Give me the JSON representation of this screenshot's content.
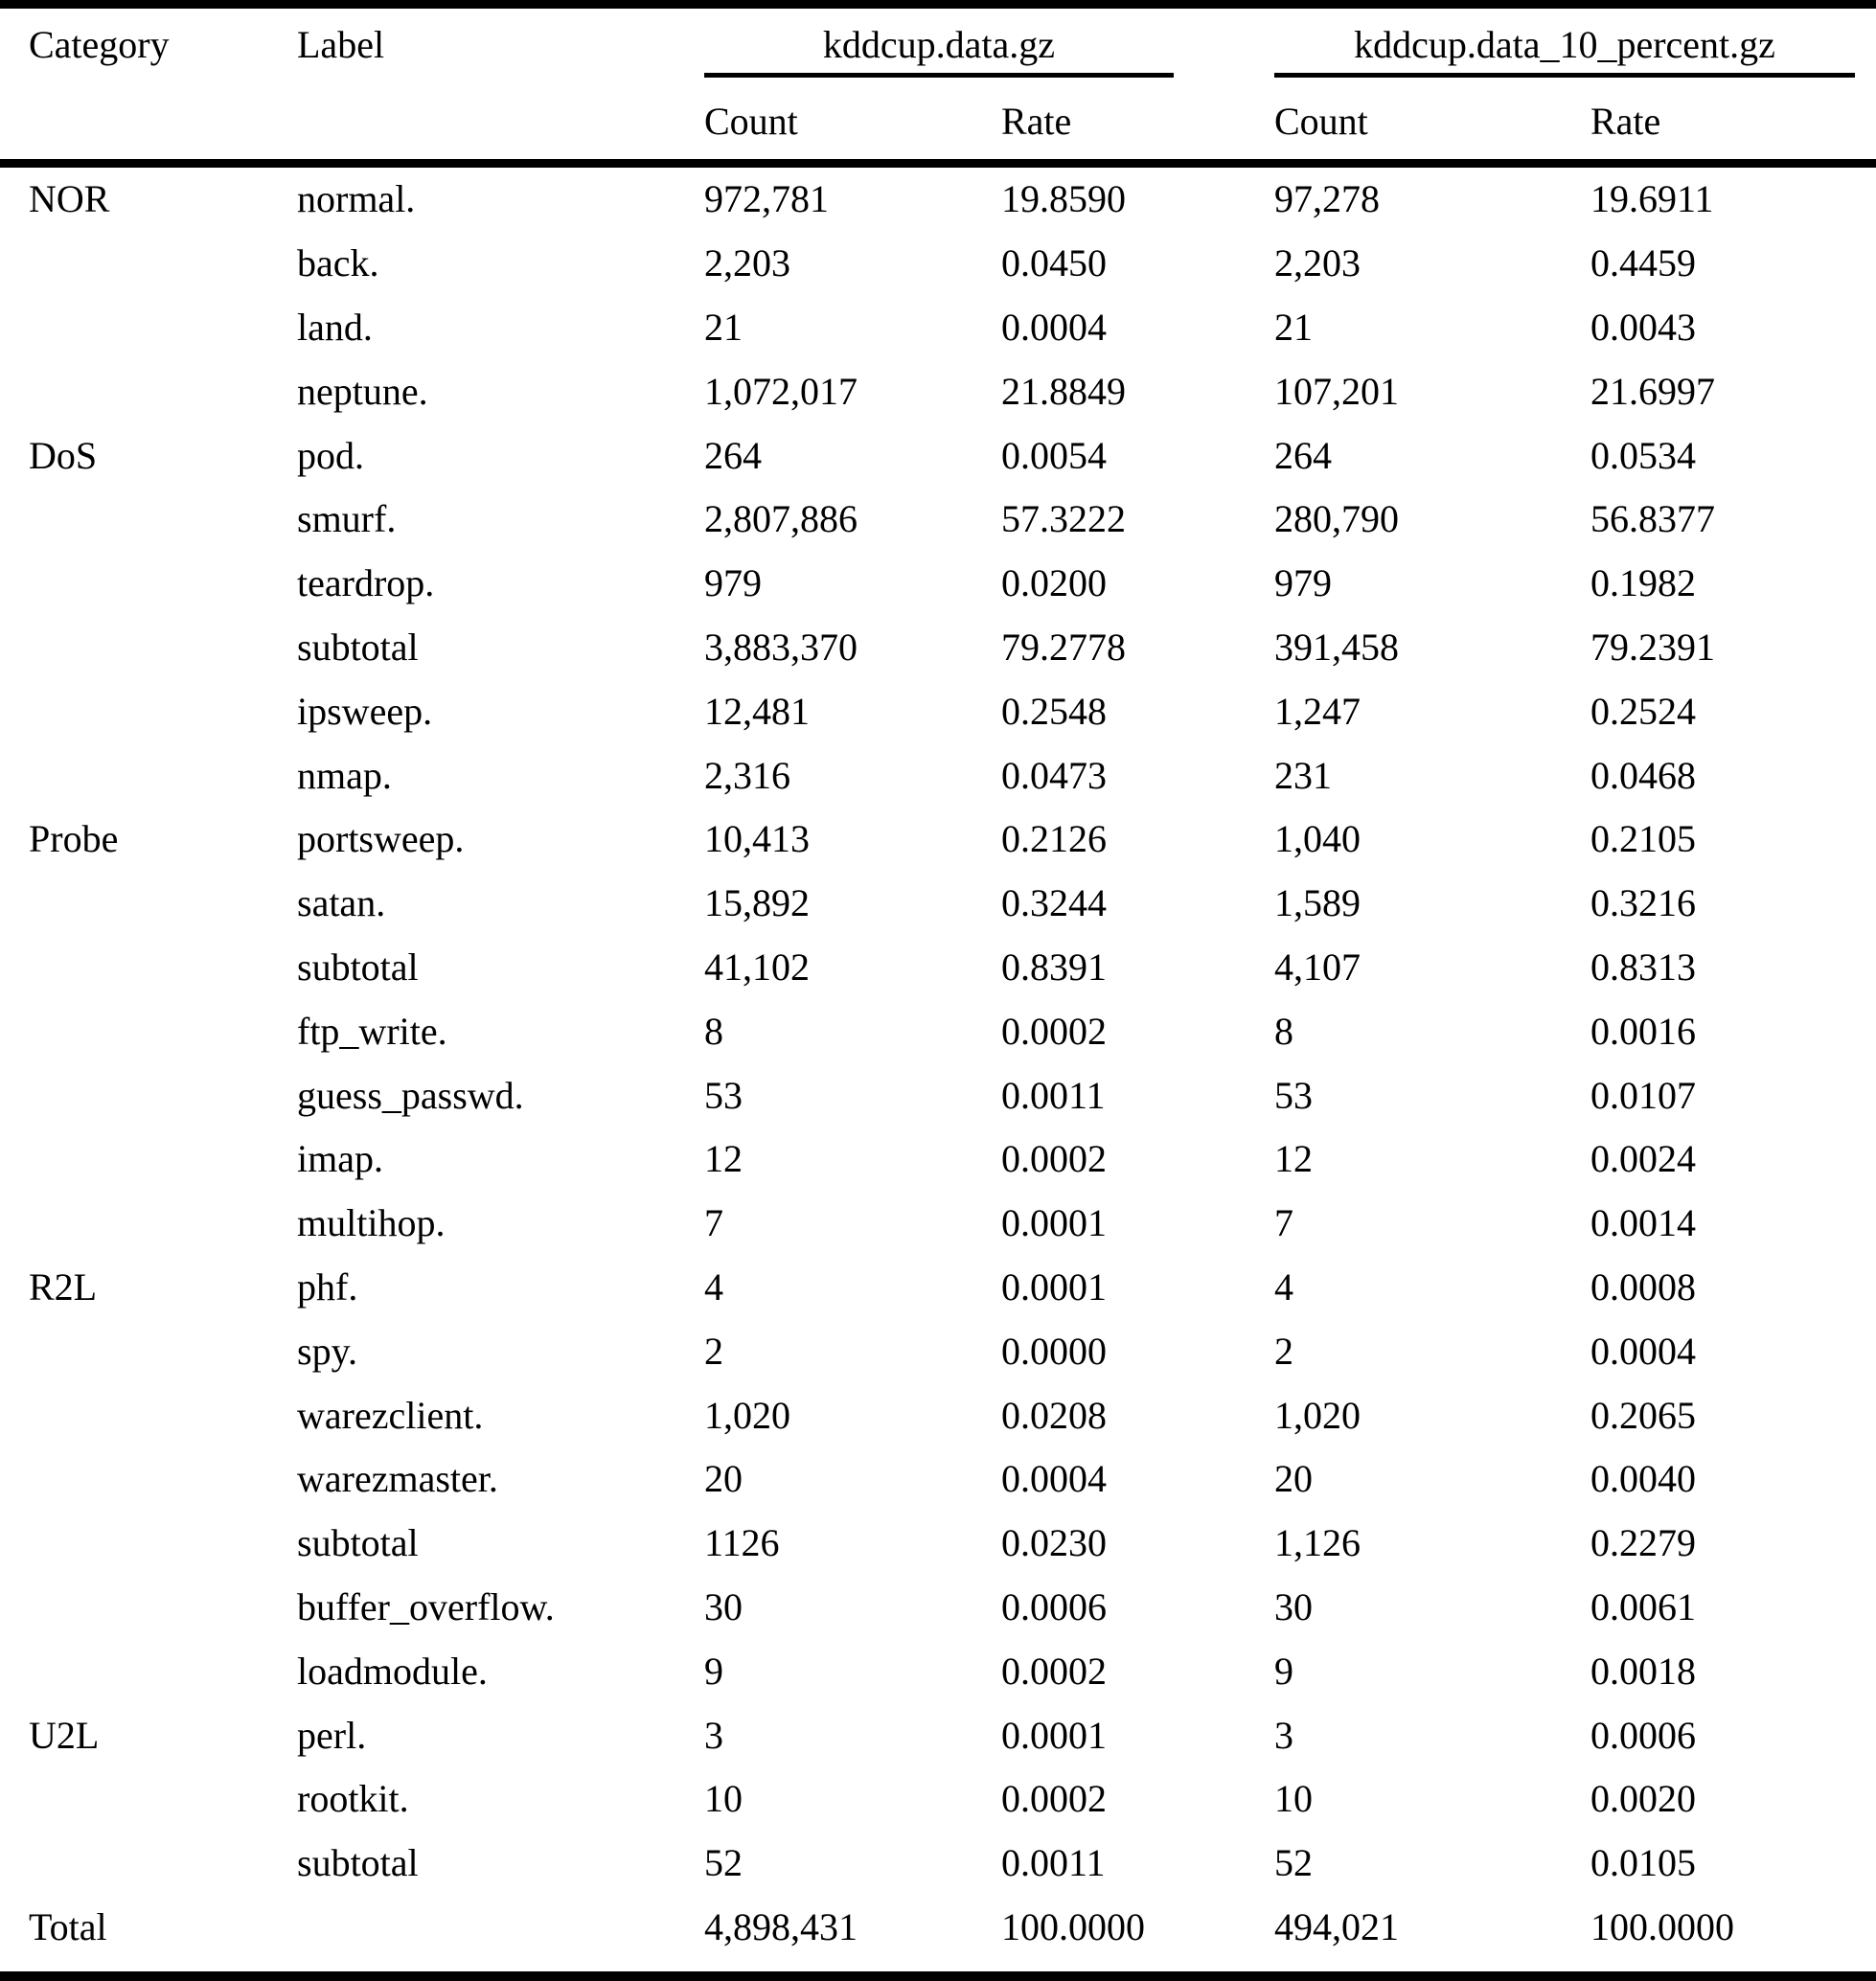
{
  "table": {
    "col_headers": {
      "category": "Category",
      "label": "Label",
      "group1": "kddcup.data.gz",
      "group2": "kddcup.data_10_percent.gz",
      "count1": "Count",
      "rate1": "Rate",
      "count2": "Count",
      "rate2": "Rate"
    },
    "rows": [
      {
        "category": "NOR",
        "label": "normal.",
        "count1": "972,781",
        "rate1": "19.8590",
        "count2": "97,278",
        "rate2": "19.6911"
      },
      {
        "category": "",
        "label": "back.",
        "count1": "2,203",
        "rate1": "0.0450",
        "count2": "2,203",
        "rate2": "0.4459"
      },
      {
        "category": "",
        "label": "land.",
        "count1": "21",
        "rate1": "0.0004",
        "count2": "21",
        "rate2": "0.0043"
      },
      {
        "category": "",
        "label": "neptune.",
        "count1": "1,072,017",
        "rate1": "21.8849",
        "count2": "107,201",
        "rate2": "21.6997"
      },
      {
        "category": "DoS",
        "label": "pod.",
        "count1": "264",
        "rate1": "0.0054",
        "count2": "264",
        "rate2": "0.0534"
      },
      {
        "category": "",
        "label": "smurf.",
        "count1": "2,807,886",
        "rate1": "57.3222",
        "count2": "280,790",
        "rate2": "56.8377"
      },
      {
        "category": "",
        "label": "teardrop.",
        "count1": "979",
        "rate1": "0.0200",
        "count2": "979",
        "rate2": "0.1982"
      },
      {
        "category": "",
        "label": "subtotal",
        "count1": "3,883,370",
        "rate1": "79.2778",
        "count2": "391,458",
        "rate2": "79.2391"
      },
      {
        "category": "",
        "label": "ipsweep.",
        "count1": "12,481",
        "rate1": "0.2548",
        "count2": "1,247",
        "rate2": "0.2524"
      },
      {
        "category": "",
        "label": "nmap.",
        "count1": "2,316",
        "rate1": "0.0473",
        "count2": "231",
        "rate2": "0.0468"
      },
      {
        "category": "Probe",
        "label": "portsweep.",
        "count1": "10,413",
        "rate1": "0.2126",
        "count2": "1,040",
        "rate2": "0.2105"
      },
      {
        "category": "",
        "label": "satan.",
        "count1": "15,892",
        "rate1": "0.3244",
        "count2": "1,589",
        "rate2": "0.3216"
      },
      {
        "category": "",
        "label": "subtotal",
        "count1": "41,102",
        "rate1": "0.8391",
        "count2": "4,107",
        "rate2": "0.8313"
      },
      {
        "category": "",
        "label": "ftp_write.",
        "count1": "8",
        "rate1": "0.0002",
        "count2": "8",
        "rate2": "0.0016"
      },
      {
        "category": "",
        "label": "guess_passwd.",
        "count1": "53",
        "rate1": "0.0011",
        "count2": "53",
        "rate2": "0.0107"
      },
      {
        "category": "",
        "label": "imap.",
        "count1": "12",
        "rate1": "0.0002",
        "count2": "12",
        "rate2": "0.0024"
      },
      {
        "category": "",
        "label": "multihop.",
        "count1": "7",
        "rate1": "0.0001",
        "count2": "7",
        "rate2": "0.0014"
      },
      {
        "category": "R2L",
        "label": "phf.",
        "count1": "4",
        "rate1": "0.0001",
        "count2": "4",
        "rate2": "0.0008"
      },
      {
        "category": "",
        "label": "spy.",
        "count1": "2",
        "rate1": "0.0000",
        "count2": "2",
        "rate2": "0.0004"
      },
      {
        "category": "",
        "label": "warezclient.",
        "count1": "1,020",
        "rate1": "0.0208",
        "count2": "1,020",
        "rate2": "0.2065"
      },
      {
        "category": "",
        "label": "warezmaster.",
        "count1": "20",
        "rate1": "0.0004",
        "count2": "20",
        "rate2": "0.0040"
      },
      {
        "category": "",
        "label": "subtotal",
        "count1": "1126",
        "rate1": "0.0230",
        "count2": "1,126",
        "rate2": "0.2279"
      },
      {
        "category": "",
        "label": "buffer_overflow.",
        "count1": "30",
        "rate1": "0.0006",
        "count2": "30",
        "rate2": "0.0061"
      },
      {
        "category": "",
        "label": "loadmodule.",
        "count1": "9",
        "rate1": "0.0002",
        "count2": "9",
        "rate2": "0.0018"
      },
      {
        "category": "U2L",
        "label": "perl.",
        "count1": "3",
        "rate1": "0.0001",
        "count2": "3",
        "rate2": "0.0006"
      },
      {
        "category": "",
        "label": "rootkit.",
        "count1": "10",
        "rate1": "0.0002",
        "count2": "10",
        "rate2": "0.0020"
      },
      {
        "category": "",
        "label": "subtotal",
        "count1": "52",
        "rate1": "0.0011",
        "count2": "52",
        "rate2": "0.0105"
      },
      {
        "category": "Total",
        "label": "",
        "count1": "4,898,431",
        "rate1": "100.0000",
        "count2": "494,021",
        "rate2": "100.0000"
      }
    ]
  }
}
